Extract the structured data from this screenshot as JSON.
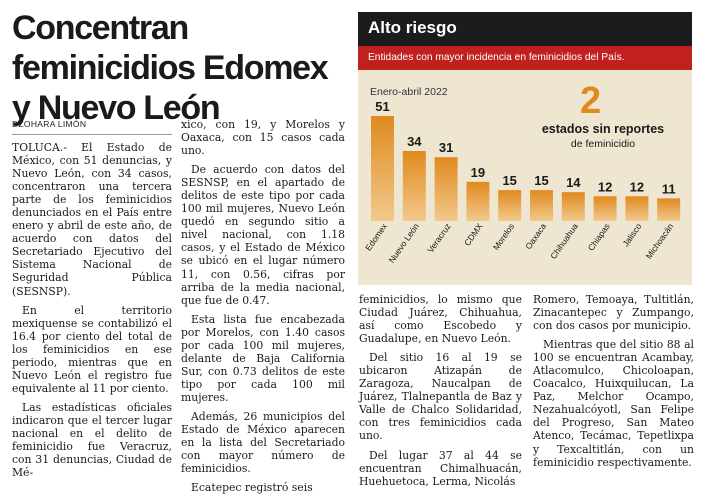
{
  "article": {
    "headline": "Concentran feminicidios Edomex y Nuevo León",
    "byline": "DZOHARA LIMÓN",
    "col1": [
      "TOLUCA.- El Estado de México, con 51 denuncias, y Nuevo León, con 34 casos, concentraron una tercera parte de los feminicidios denunciados en el País entre enero y abril de este año, de acuerdo con datos del Secretariado Ejecutivo del Sistema Nacional de Seguridad Pública (SESNSP).",
      "En el territorio mexiquense se contabilizó el 16.4 por ciento del total de los feminicidios en ese periodo, mientras que en Nuevo León el registro fue equivalente al 11 por ciento.",
      "Las estadísticas oficiales indicaron que el tercer lugar nacional en el delito de feminicidio fue Veracruz, con 31 denuncias, Ciudad de Mé-"
    ],
    "col2": [
      "xico, con 19, y Morelos y Oaxaca, con 15 casos cada uno.",
      "De acuerdo con datos del SESNSP, en el apartado de delitos de este tipo por cada 100 mil mujeres, Nuevo León quedó en segundo sitio a nivel nacional, con 1.18 casos, y el Estado de México se ubicó en el lugar número 11, con 0.56, cifras por arriba de la media nacional, que fue de 0.47.",
      "Esta lista fue encabezada por Morelos, con 1.40 casos por cada 100 mil mujeres, delante de Baja California Sur, con 0.73 delitos de este tipo por cada 100 mil mujeres.",
      "Además, 26 municipios del Estado de México aparecen en la lista del Secretariado con mayor número de feminicidios.",
      "Ecatepec registró seis"
    ],
    "col3": [
      "feminicidios, lo mismo que Ciudad Juárez, Chihuahua, así como Escobedo y Guadalupe, en Nuevo León.",
      "Del sitio 16 al 19 se ubicaron Atizapán de Zaragoza, Naucalpan de Juárez, Tlalnepantla de Baz y Valle de Chalco Solidaridad, con tres feminicidios cada uno.",
      "Del lugar 37 al 44 se encuentran Chimalhuacán, Huehuetoca, Lerma, Nicolás"
    ],
    "col4": [
      "Romero, Temoaya, Tultitlán, Zinacantepec y Zumpango, con dos casos por municipio.",
      "Mientras que del sitio 88 al 100 se encuentran Acambay, Atlacomulco, Chicoloapan, Coacalco, Huixquilucan, La Paz, Melchor Ocampo, Nezahualcóyotl, San Felipe del Progreso, San Mateo Atenco, Tecámac, Tepetlixpa y Texcaltitlán, con un feminicidio respectivamente."
    ]
  },
  "chart_data": {
    "type": "bar",
    "title": "Alto riesgo",
    "subtitle": "Entidades con mayor incidencia en feminicidios del País.",
    "period": "Enero-abril 2022",
    "categories": [
      "Edomex",
      "Nuevo León",
      "Veracruz",
      "CDMX",
      "Morelos",
      "Oaxaca",
      "Chihuahua",
      "Chiapas",
      "Jalisco",
      "Michoacán"
    ],
    "values": [
      51,
      34,
      31,
      19,
      15,
      15,
      14,
      12,
      12,
      11
    ],
    "ylim": [
      0,
      51
    ],
    "grid": false,
    "legend": "none",
    "annotation": {
      "number": "2",
      "text": "estados sin reportes",
      "subtext": "de feminicidio"
    },
    "colors": {
      "bar_top": "#e08a1e",
      "bar_bottom": "#f1c98c",
      "header": "#1c1c1c",
      "subheader": "#c0211f",
      "background": "#efe6d2"
    }
  }
}
